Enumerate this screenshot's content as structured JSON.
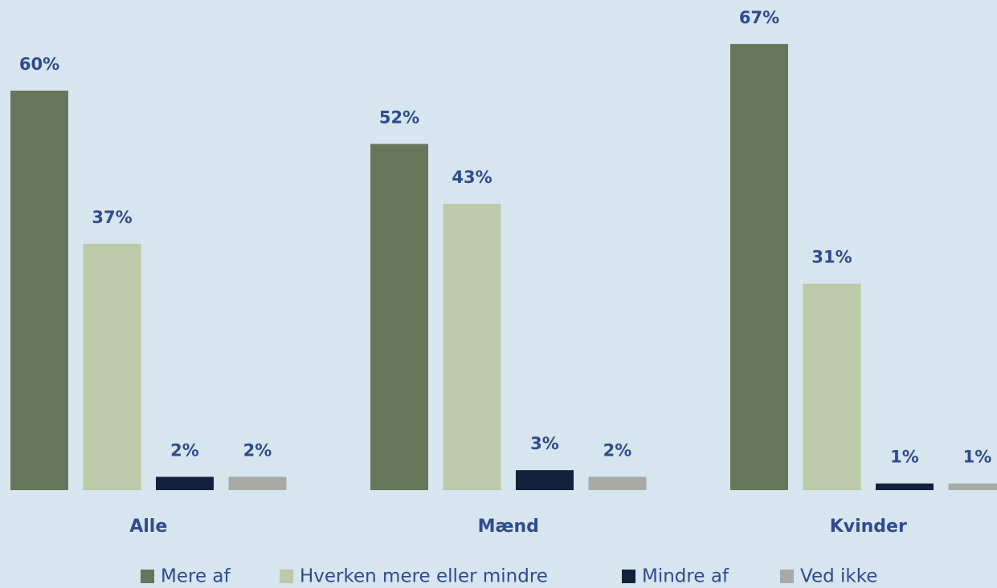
{
  "chart_data": {
    "type": "bar",
    "categories": [
      "Alle",
      "Mænd",
      "Kvinder"
    ],
    "series": [
      {
        "name": "Mere af",
        "color": "#67765a",
        "values": [
          60,
          52,
          67
        ],
        "value_labels": [
          "60%",
          "52%",
          "67%"
        ]
      },
      {
        "name": "Hverken mere eller mindre",
        "color": "#bccaa9",
        "values": [
          37,
          43,
          31
        ],
        "value_labels": [
          "37%",
          "43%",
          "31%"
        ]
      },
      {
        "name": "Mindre af",
        "color": "#14213d",
        "values": [
          2,
          3,
          1
        ],
        "value_labels": [
          "2%",
          "3%",
          "1%"
        ]
      },
      {
        "name": "Ved ikke",
        "color": "#a9aaa5",
        "values": [
          2,
          2,
          1
        ],
        "value_labels": [
          "2%",
          "2%",
          "1%"
        ]
      }
    ],
    "legend": "bottom"
  }
}
